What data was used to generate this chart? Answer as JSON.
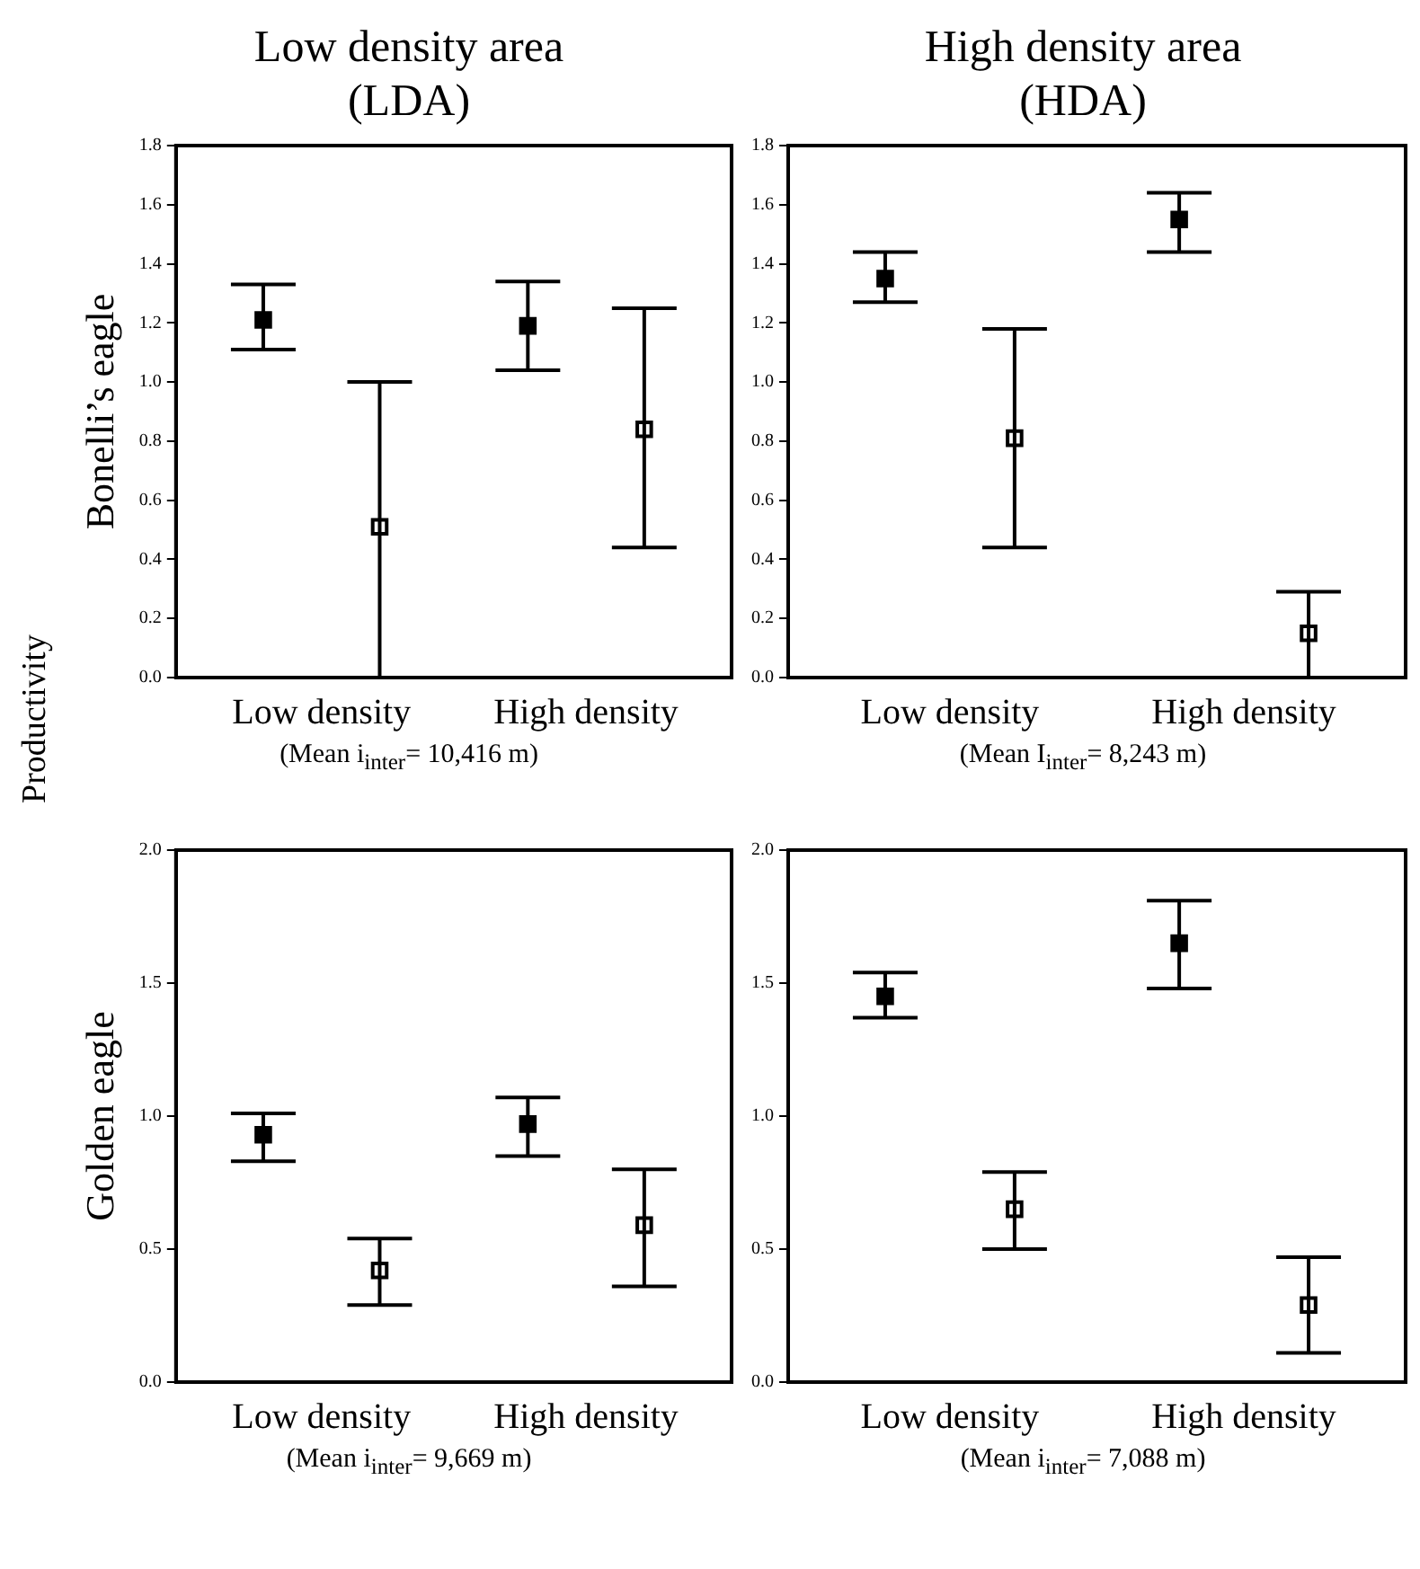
{
  "chart_data": [
    {
      "type": "scatter",
      "title": "Low density area (LDA)",
      "ylabel": "Bonelli’s eagle",
      "xlabel": "(Mean i$_{inter}$= 10,416 m)",
      "annotations": [
        "Productivity"
      ],
      "categories": [
        "Low density",
        "High density"
      ],
      "marker": "square",
      "grid": false,
      "legend": false,
      "ylim": [
        0,
        1.8
      ],
      "yticks": [
        {
          "value": 0,
          "label": "0.0"
        },
        {
          "value": 0.2,
          "label": "0.2"
        },
        {
          "value": 0.4,
          "label": "0.4"
        },
        {
          "value": 0.6,
          "label": "0.6"
        },
        {
          "value": 0.8,
          "label": "0.8"
        },
        {
          "value": 1,
          "label": "1.0"
        },
        {
          "value": 1.2,
          "label": "1.2"
        },
        {
          "value": 1.4,
          "label": "1.4"
        },
        {
          "value": 1.6,
          "label": "1.6"
        },
        {
          "value": 1.8,
          "label": "1.8"
        }
      ],
      "series": [
        {
          "color": "#000000",
          "values": [
            1.21,
            1.19
          ],
          "errors": [
            [
              1.11,
              1.33
            ],
            [
              1.04,
              1.34
            ]
          ]
        },
        {
          "color": "#000000",
          "values": [
            0.51,
            0.84
          ],
          "errors": [
            [
              0.0,
              1.0
            ],
            [
              0.44,
              1.25
            ]
          ]
        }
      ]
    },
    {
      "type": "scatter",
      "title": "High density area (HDA)",
      "xlabel": "(Mean I$_{inter}$= 8,243 m)",
      "categories": [
        "Low density",
        "High density"
      ],
      "marker": "square",
      "grid": false,
      "legend": false,
      "ylim": [
        0,
        1.8
      ],
      "yticks": [
        {
          "value": 0,
          "label": "0.0"
        },
        {
          "value": 0.2,
          "label": "0.2"
        },
        {
          "value": 0.4,
          "label": "0.4"
        },
        {
          "value": 0.6,
          "label": "0.6"
        },
        {
          "value": 0.8,
          "label": "0.8"
        },
        {
          "value": 1,
          "label": "1.0"
        },
        {
          "value": 1.2,
          "label": "1.2"
        },
        {
          "value": 1.4,
          "label": "1.4"
        },
        {
          "value": 1.6,
          "label": "1.6"
        },
        {
          "value": 1.8,
          "label": "1.8"
        }
      ],
      "series": [
        {
          "color": "#000000",
          "values": [
            1.35,
            1.55
          ],
          "errors": [
            [
              1.27,
              1.44
            ],
            [
              1.44,
              1.64
            ]
          ]
        },
        {
          "color": "#000000",
          "values": [
            0.81,
            0.15
          ],
          "errors": [
            [
              0.44,
              1.18
            ],
            [
              0.0,
              0.29
            ]
          ]
        }
      ]
    },
    {
      "type": "scatter",
      "ylabel": "Golden eagle",
      "xlabel": "(Mean i$_{inter}$= 9,669 m)",
      "categories": [
        "Low density",
        "High density"
      ],
      "marker": "square",
      "grid": false,
      "legend": false,
      "ylim": [
        0,
        2
      ],
      "yticks": [
        {
          "value": 0,
          "label": "0.0"
        },
        {
          "value": 0.5,
          "label": "0.5"
        },
        {
          "value": 1,
          "label": "1.0"
        },
        {
          "value": 1.5,
          "label": "1.5"
        },
        {
          "value": 2,
          "label": "2.0"
        }
      ],
      "series": [
        {
          "color": "#000000",
          "values": [
            0.93,
            0.97
          ],
          "errors": [
            [
              0.83,
              1.01
            ],
            [
              0.85,
              1.07
            ]
          ]
        },
        {
          "color": "#000000",
          "values": [
            0.42,
            0.59
          ],
          "errors": [
            [
              0.29,
              0.54
            ],
            [
              0.36,
              0.8
            ]
          ]
        }
      ]
    },
    {
      "type": "scatter",
      "xlabel": "(Mean i$_{inter}$= 7,088 m)",
      "categories": [
        "Low density",
        "High density"
      ],
      "marker": "square",
      "grid": false,
      "legend": false,
      "ylim": [
        0,
        2
      ],
      "yticks": [
        {
          "value": 0,
          "label": "0.0"
        },
        {
          "value": 0.5,
          "label": "0.5"
        },
        {
          "value": 1,
          "label": "1.0"
        },
        {
          "value": 1.5,
          "label": "1.5"
        },
        {
          "value": 2,
          "label": "2.0"
        }
      ],
      "series": [
        {
          "color": "#000000",
          "values": [
            1.45,
            1.65
          ],
          "errors": [
            [
              1.37,
              1.54
            ],
            [
              1.48,
              1.81
            ]
          ]
        },
        {
          "color": "#000000",
          "values": [
            0.65,
            0.29
          ],
          "errors": [
            [
              0.5,
              0.79
            ],
            [
              0.11,
              0.47
            ]
          ]
        }
      ]
    }
  ]
}
